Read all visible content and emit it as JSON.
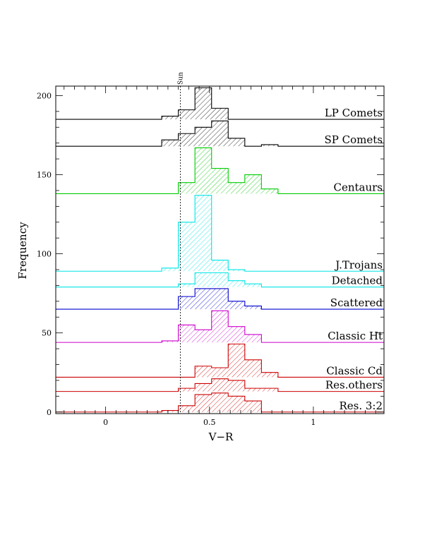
{
  "chart_data": {
    "type": "histogram",
    "xlabel": "V−R",
    "ylabel": "Frequency",
    "xlim": [
      -0.24,
      1.34
    ],
    "ylim": [
      -1,
      206
    ],
    "x_ticks": [
      0,
      0.5,
      1
    ],
    "x_tick_labels": [
      "0",
      "0.5",
      "1"
    ],
    "y_ticks": [
      0,
      50,
      100,
      150,
      200
    ],
    "y_tick_labels": [
      "0",
      "50",
      "100",
      "150",
      "200"
    ],
    "bin_edges": [
      0.27,
      0.35,
      0.43,
      0.51,
      0.59,
      0.67,
      0.75,
      0.83,
      0.91
    ],
    "reference_line": {
      "label": "Sun",
      "x": 0.36
    },
    "series": [
      {
        "name": "LP Comets",
        "color": "#000000",
        "baseline": 185,
        "values": [
          187,
          191,
          205,
          192,
          185,
          185,
          185,
          185
        ]
      },
      {
        "name": "SP Comets",
        "color": "#000000",
        "baseline": 168,
        "values": [
          172,
          176,
          180,
          184,
          173,
          168,
          169,
          168
        ]
      },
      {
        "name": "Centaurs",
        "color": "#00cc00",
        "baseline": 138,
        "values": [
          138,
          145,
          167,
          154,
          145,
          150,
          141,
          138
        ]
      },
      {
        "name": "J.Trojans",
        "color": "#00e5e5",
        "baseline": 89,
        "values": [
          91,
          120,
          137,
          96,
          90,
          89,
          89,
          89
        ]
      },
      {
        "name": "Detached",
        "color": "#00e5e5",
        "baseline": 79,
        "values": [
          79,
          81,
          88,
          88,
          83,
          81,
          79,
          79
        ]
      },
      {
        "name": "Scattered",
        "color": "#0000cc",
        "baseline": 65,
        "values": [
          65,
          73,
          78,
          78,
          70,
          67,
          65,
          65
        ]
      },
      {
        "name": "Classic Ht",
        "color": "#cc00cc",
        "baseline": 44,
        "values": [
          45,
          55,
          52,
          64,
          54,
          49,
          44,
          44
        ]
      },
      {
        "name": "Classic Cd",
        "color": "#cc0000",
        "baseline": 22,
        "values": [
          22,
          22,
          29,
          28,
          43,
          33,
          25,
          22
        ]
      },
      {
        "name": "Res.others",
        "color": "#cc0000",
        "baseline": 13,
        "values": [
          13,
          15,
          18,
          21,
          20,
          15,
          15,
          13
        ]
      },
      {
        "name": "Res. 3:2",
        "color": "#cc0000",
        "baseline": 0,
        "values": [
          1,
          4,
          11,
          12,
          10,
          7,
          0,
          0
        ]
      }
    ]
  }
}
